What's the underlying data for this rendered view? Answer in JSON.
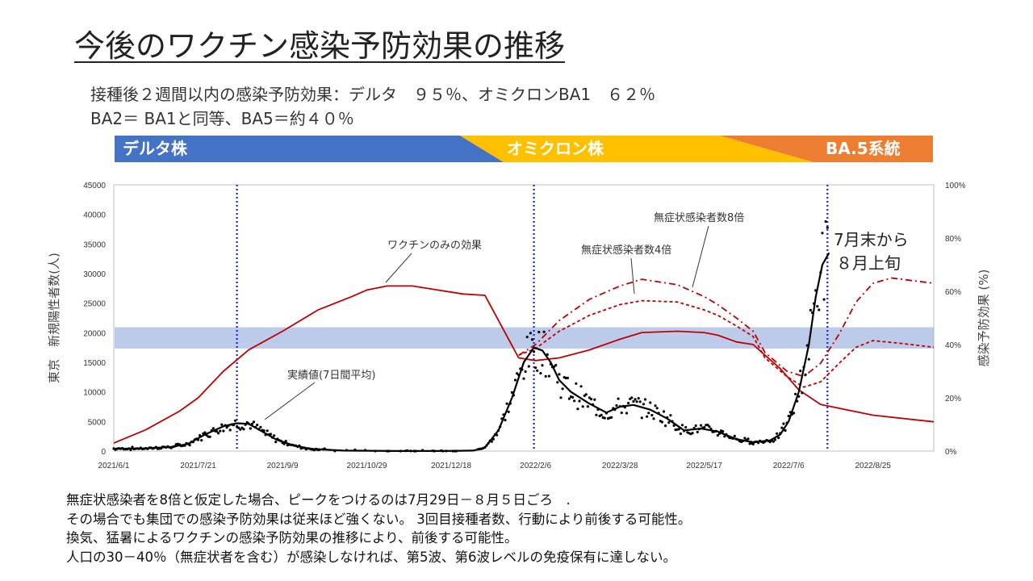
{
  "title": "今後のワクチン感染予防効果の推移",
  "subtitle_line1": "接種後２週間以内の感染予防効果：デルタ　９５％、オミクロンBA1　６２％",
  "subtitle_line2": "BA2＝ BA1と同等、BA5＝約４０％",
  "variant_band": [
    {
      "label": "デルタ株",
      "color": "#4472C4"
    },
    {
      "label": "オミクロン株",
      "color": "#FFC000"
    },
    {
      "label": "BA.5系統",
      "color": "#ED7D31"
    }
  ],
  "chart_data": {
    "type": "line",
    "x_tick_labels": [
      "2021/6/1",
      "2021/7/21",
      "2021/9/9",
      "2021/10/29",
      "2021/12/18",
      "2022/2/6",
      "2022/3/28",
      "2022/5/17",
      "2022/7/6",
      "2022/8/25"
    ],
    "x_start": "2021-06-01",
    "x_end": "2022-09-30",
    "y_left_label": "東京　新規陽性者数(人)",
    "y_left_ticks": [
      "0",
      "5000",
      "10000",
      "15000",
      "20000",
      "25000",
      "30000",
      "35000",
      "40000",
      "45000"
    ],
    "y_left_range": [
      0,
      45000
    ],
    "y_right_label": "感染予防効果 (%)",
    "y_right_ticks": [
      "0%",
      "20%",
      "40%",
      "60%",
      "80%",
      "100%"
    ],
    "y_right_range": [
      0,
      100
    ],
    "herd_band_percent": [
      38.5,
      46.5
    ],
    "vertical_marker_dates": [
      "2021-08-13",
      "2022-02-05",
      "2022-07-29"
    ],
    "series": [
      {
        "name": "ワクチンのみの効果",
        "axis": "right",
        "style": "solid",
        "color": "#C00000",
        "points": [
          [
            "2021-06-01",
            3
          ],
          [
            "2021-06-20",
            8
          ],
          [
            "2021-07-10",
            15
          ],
          [
            "2021-07-21",
            20
          ],
          [
            "2021-08-05",
            30
          ],
          [
            "2021-08-20",
            38
          ],
          [
            "2021-09-09",
            45
          ],
          [
            "2021-09-30",
            53
          ],
          [
            "2021-10-20",
            58
          ],
          [
            "2021-10-29",
            60.5
          ],
          [
            "2021-11-10",
            62
          ],
          [
            "2021-11-25",
            62
          ],
          [
            "2021-12-10",
            60.5
          ],
          [
            "2021-12-25",
            59
          ],
          [
            "2022-01-07",
            58.5
          ],
          [
            "2022-01-27",
            35
          ],
          [
            "2022-02-06",
            34
          ],
          [
            "2022-02-20",
            35
          ],
          [
            "2022-03-10",
            38
          ],
          [
            "2022-03-28",
            42
          ],
          [
            "2022-04-10",
            44.5
          ],
          [
            "2022-05-01",
            45
          ],
          [
            "2022-05-17",
            44.5
          ],
          [
            "2022-05-25",
            43.5
          ],
          [
            "2022-06-05",
            41
          ],
          [
            "2022-06-15",
            40
          ],
          [
            "2022-06-22",
            36
          ],
          [
            "2022-07-01",
            31
          ],
          [
            "2022-07-12",
            23
          ],
          [
            "2022-07-25",
            17.5
          ],
          [
            "2022-08-25",
            13.5
          ],
          [
            "2022-09-30",
            11
          ]
        ]
      },
      {
        "name": "無症状感染者数4倍",
        "axis": "right",
        "style": "dashed",
        "color": "#C00000",
        "points": [
          [
            "2022-01-27",
            36
          ],
          [
            "2022-02-06",
            38.5
          ],
          [
            "2022-02-20",
            45
          ],
          [
            "2022-03-10",
            51
          ],
          [
            "2022-03-28",
            55
          ],
          [
            "2022-04-10",
            56.5
          ],
          [
            "2022-05-01",
            56
          ],
          [
            "2022-05-17",
            53
          ],
          [
            "2022-05-25",
            51
          ],
          [
            "2022-06-05",
            47
          ],
          [
            "2022-06-15",
            43
          ],
          [
            "2022-06-22",
            35
          ],
          [
            "2022-07-05",
            28
          ],
          [
            "2022-07-15",
            24
          ],
          [
            "2022-07-25",
            26
          ],
          [
            "2022-08-05",
            33
          ],
          [
            "2022-08-15",
            39
          ],
          [
            "2022-08-25",
            41.5
          ],
          [
            "2022-09-10",
            40.5
          ],
          [
            "2022-09-30",
            39
          ]
        ]
      },
      {
        "name": "無症状感染者数8倍",
        "axis": "right",
        "style": "dashdot",
        "color": "#C00000",
        "points": [
          [
            "2022-01-27",
            36
          ],
          [
            "2022-02-06",
            40
          ],
          [
            "2022-02-20",
            49
          ],
          [
            "2022-03-10",
            57
          ],
          [
            "2022-03-28",
            62
          ],
          [
            "2022-04-10",
            64.5
          ],
          [
            "2022-05-01",
            62.5
          ],
          [
            "2022-05-17",
            58
          ],
          [
            "2022-05-25",
            55
          ],
          [
            "2022-06-05",
            50
          ],
          [
            "2022-06-15",
            45
          ],
          [
            "2022-06-22",
            37
          ],
          [
            "2022-07-05",
            30
          ],
          [
            "2022-07-15",
            28
          ],
          [
            "2022-07-25",
            33
          ],
          [
            "2022-08-05",
            44
          ],
          [
            "2022-08-15",
            56
          ],
          [
            "2022-08-25",
            63
          ],
          [
            "2022-09-05",
            65
          ],
          [
            "2022-09-30",
            63
          ]
        ]
      },
      {
        "name": "実績値(7日間平均)",
        "axis": "left",
        "style": "solid",
        "color": "#000000",
        "points": [
          [
            "2021-06-01",
            400
          ],
          [
            "2021-06-20",
            450
          ],
          [
            "2021-07-05",
            700
          ],
          [
            "2021-07-15",
            1200
          ],
          [
            "2021-07-25",
            2800
          ],
          [
            "2021-08-05",
            4200
          ],
          [
            "2021-08-13",
            4700
          ],
          [
            "2021-08-20",
            4600
          ],
          [
            "2021-08-28",
            3300
          ],
          [
            "2021-09-05",
            2000
          ],
          [
            "2021-09-15",
            1000
          ],
          [
            "2021-09-25",
            400
          ],
          [
            "2021-10-15",
            80
          ],
          [
            "2021-11-15",
            20
          ],
          [
            "2021-12-15",
            20
          ],
          [
            "2021-12-31",
            80
          ],
          [
            "2022-01-07",
            600
          ],
          [
            "2022-01-15",
            3500
          ],
          [
            "2022-01-23",
            9000
          ],
          [
            "2022-01-30",
            15000
          ],
          [
            "2022-02-05",
            17500
          ],
          [
            "2022-02-10",
            17000
          ],
          [
            "2022-02-15",
            15000
          ],
          [
            "2022-02-20",
            12000
          ],
          [
            "2022-02-27",
            10000
          ],
          [
            "2022-03-10",
            8000
          ],
          [
            "2022-03-20",
            6500
          ],
          [
            "2022-03-28",
            7500
          ],
          [
            "2022-04-05",
            7800
          ],
          [
            "2022-04-15",
            7000
          ],
          [
            "2022-04-25",
            5500
          ],
          [
            "2022-05-05",
            3500
          ],
          [
            "2022-05-15",
            3800
          ],
          [
            "2022-05-25",
            3300
          ],
          [
            "2022-06-05",
            2000
          ],
          [
            "2022-06-15",
            1500
          ],
          [
            "2022-06-25",
            1800
          ],
          [
            "2022-07-01",
            2800
          ],
          [
            "2022-07-06",
            5000
          ],
          [
            "2022-07-12",
            10000
          ],
          [
            "2022-07-18",
            18000
          ],
          [
            "2022-07-22",
            26000
          ],
          [
            "2022-07-26",
            31500
          ],
          [
            "2022-07-30",
            33500
          ]
        ]
      }
    ],
    "annotations": {
      "vaccine_label": "ワクチンのみの効果",
      "asym4_label": "無症状感染者数4倍",
      "asym8_label": "無症状感染者数8倍",
      "actual_label": "実績値(7日間平均)",
      "peak_line1": "7月末から",
      "peak_line2": "８月上旬"
    }
  },
  "notes": [
    "無症状感染者を8倍と仮定した場合、ピークをつけるのは7月29日－８月５日ごろ　.",
    "その場合でも集団での感染予防効果は従来ほど強くない。 3回目接種者数、行動により前後する可能性。",
    "換気、猛暑によるワクチンの感染予防効果の推移により、前後する可能性。",
    "人口の30－40％（無症状者を含む）が感染しなければ、第5波、第6波レベルの免疫保有に達しない。"
  ]
}
